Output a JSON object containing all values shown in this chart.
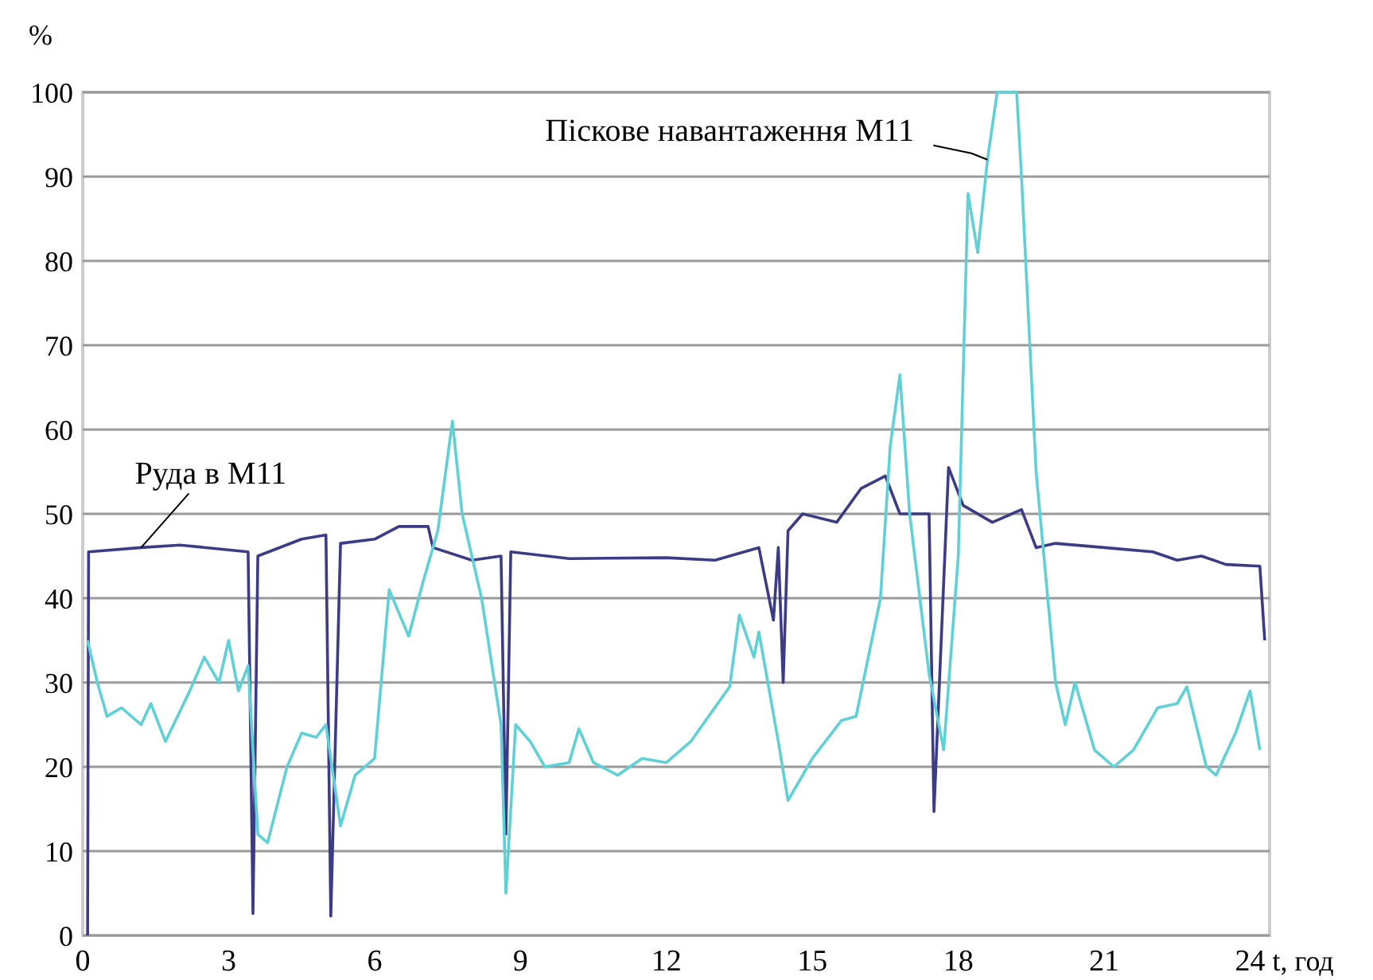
{
  "chart_data": {
    "type": "line",
    "ylabel": "%",
    "xlabel": "t, год",
    "xlim": [
      0,
      24.4
    ],
    "xticks": [
      0,
      3,
      6,
      9,
      12,
      15,
      18,
      21,
      24
    ],
    "ylim": [
      0,
      100
    ],
    "yticks": [
      0,
      10,
      20,
      30,
      40,
      50,
      60,
      70,
      80,
      90,
      100
    ],
    "grid": "y",
    "marker": "none",
    "line_style": "solid",
    "series": [
      {
        "name": "Руда в М11",
        "color": "#3b3b86",
        "x": [
          0.1,
          0.12,
          1.2,
          2,
          3.4,
          3.5,
          3.6,
          4.5,
          5,
          5.1,
          5.3,
          6,
          6.5,
          7.1,
          7.2,
          8,
          8.6,
          8.7,
          8.8,
          10,
          12,
          13,
          13.9,
          14.2,
          14.3,
          14.4,
          14.5,
          14.8,
          15.5,
          16,
          16.5,
          16.8,
          17.4,
          17.5,
          17.8,
          18.1,
          18.7,
          19.3,
          19.6,
          20,
          21,
          22,
          22.5,
          23,
          23.5,
          24.2,
          24.3
        ],
        "values": [
          0,
          45.5,
          46,
          46.3,
          45.5,
          2.6,
          45,
          47,
          47.5,
          2.3,
          46.5,
          47,
          48.5,
          48.5,
          46,
          44.5,
          45,
          12,
          45.5,
          44.7,
          44.8,
          44.5,
          46,
          37.4,
          46,
          30,
          48,
          50,
          49,
          53,
          54.5,
          50,
          50,
          14.7,
          55.5,
          51,
          49,
          50.5,
          46,
          46.5,
          46,
          45.5,
          44.5,
          45,
          44,
          43.8,
          35
        ]
      },
      {
        "name": "Піскове навантаження М11",
        "color": "#5fd0d6",
        "x": [
          0.1,
          0.3,
          0.5,
          0.8,
          1.2,
          1.4,
          1.7,
          2.2,
          2.5,
          2.8,
          3,
          3.2,
          3.4,
          3.6,
          3.8,
          4.2,
          4.5,
          4.8,
          5,
          5.3,
          5.6,
          6,
          6.3,
          6.7,
          7,
          7.3,
          7.6,
          7.8,
          8.2,
          8.6,
          8.7,
          8.9,
          9.2,
          9.5,
          10,
          10.2,
          10.5,
          11,
          11.5,
          12,
          12.5,
          13.3,
          13.5,
          13.8,
          13.9,
          14.3,
          14.5,
          15,
          15.6,
          15.9,
          16.4,
          16.6,
          16.8,
          17,
          17.4,
          17.7,
          18,
          18.2,
          18.4,
          18.6,
          18.8,
          19.2,
          19.3,
          19.6,
          20,
          20.2,
          20.4,
          20.8,
          21.2,
          21.6,
          22.1,
          22.5,
          22.7,
          23.1,
          23.3,
          23.7,
          24,
          24.2
        ],
        "values": [
          35,
          30,
          26,
          27,
          25,
          27.5,
          23,
          29,
          33,
          30,
          35,
          29,
          32,
          12,
          11,
          20,
          24,
          23.5,
          25,
          13,
          19,
          21,
          41,
          35.5,
          42,
          48,
          61,
          50,
          40,
          25,
          5,
          25,
          23,
          20,
          20.5,
          24.5,
          20.5,
          19,
          21,
          20.5,
          23,
          29.5,
          38,
          33,
          36,
          23,
          16,
          21,
          25.5,
          26,
          40,
          58,
          66.5,
          50,
          31,
          22,
          45,
          88,
          81,
          92,
          100,
          100,
          90,
          55,
          30,
          25,
          30,
          22,
          20,
          22,
          27,
          27.5,
          29.5,
          20,
          19,
          24,
          29,
          22
        ]
      }
    ]
  }
}
